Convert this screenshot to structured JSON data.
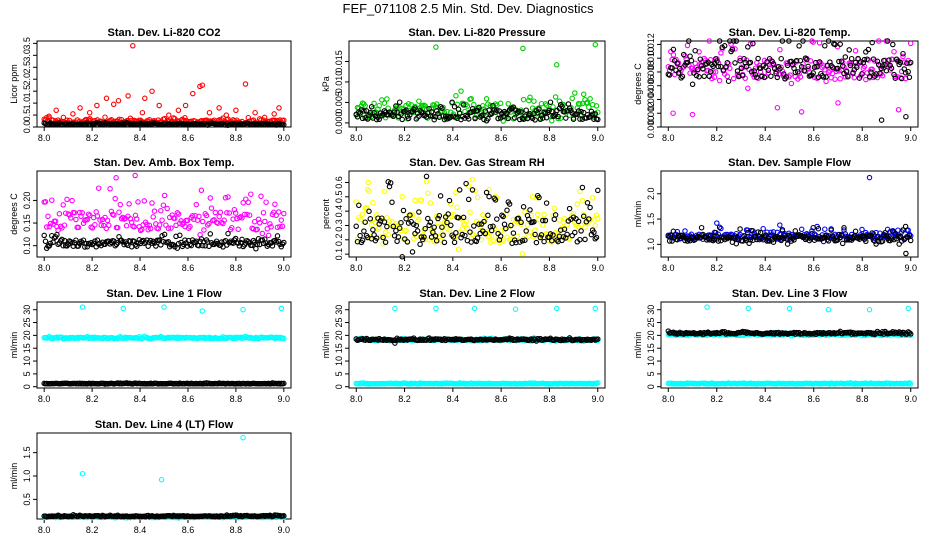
{
  "title": "FEF_071108  2.5 Min. Std. Dev. Diagnostics",
  "chart_data": [
    {
      "type": "scatter",
      "title": "Stan. Dev. Li-820 CO2",
      "ylabel": "Licor ppm",
      "xlim": [
        7.97,
        9.03
      ],
      "ylim": [
        0,
        3.6
      ],
      "xticks": [
        "8.0",
        "8.2",
        "8.4",
        "8.6",
        "8.8",
        "9.0"
      ],
      "yticks": [
        "0.0",
        "0.5",
        "1.0",
        "1.5",
        "2.0",
        "2.5",
        "3.0",
        "3.5"
      ],
      "series": [
        {
          "color": "#ff0000",
          "base": 0.22,
          "spread": 0.08,
          "bandwidth": 0.25,
          "outliers": [
            [
              8.02,
              0.45
            ],
            [
              8.05,
              0.7
            ],
            [
              8.08,
              0.4
            ],
            [
              8.12,
              0.55
            ],
            [
              8.15,
              0.8
            ],
            [
              8.19,
              0.6
            ],
            [
              8.22,
              0.9
            ],
            [
              8.26,
              1.2
            ],
            [
              8.29,
              0.95
            ],
            [
              8.31,
              1.1
            ],
            [
              8.35,
              1.3
            ],
            [
              8.37,
              3.4
            ],
            [
              8.41,
              0.6
            ],
            [
              8.42,
              1.2
            ],
            [
              8.45,
              1.5
            ],
            [
              8.48,
              0.9
            ],
            [
              8.52,
              0.5
            ],
            [
              8.56,
              0.7
            ],
            [
              8.59,
              0.9
            ],
            [
              8.62,
              1.4
            ],
            [
              8.65,
              1.7
            ],
            [
              8.66,
              1.75
            ],
            [
              8.69,
              0.6
            ],
            [
              8.73,
              0.8
            ],
            [
              8.76,
              0.5
            ],
            [
              8.8,
              0.7
            ],
            [
              8.84,
              1.8
            ],
            [
              8.88,
              0.6
            ],
            [
              8.92,
              0.4
            ],
            [
              8.96,
              0.55
            ],
            [
              8.98,
              0.8
            ]
          ]
        },
        {
          "color": "#000000",
          "base": 0.12,
          "spread": 0.03,
          "bandwidth": 0.06,
          "outliers": []
        }
      ]
    },
    {
      "type": "scatter",
      "title": "Stan. Dev. Li-820 Pressure",
      "ylabel": "kPa",
      "xlim": [
        7.97,
        9.03
      ],
      "ylim": [
        -0.001,
        0.02
      ],
      "xticks": [
        "8.0",
        "8.2",
        "8.4",
        "8.6",
        "8.8",
        "9.0"
      ],
      "yticks": [
        "0.000",
        "0.005",
        "0.010",
        "0.015"
      ],
      "series": [
        {
          "color": "#00cc00",
          "base": 0.003,
          "spread": 0.002,
          "bandwidth": 0.0045,
          "outliers": [
            [
              8.33,
              0.0185
            ],
            [
              8.69,
              0.0182
            ],
            [
              8.83,
              0.0142
            ],
            [
              8.99,
              0.0191
            ]
          ]
        },
        {
          "color": "#000000",
          "base": 0.002,
          "spread": 0.0012,
          "bandwidth": 0.003,
          "outliers": []
        }
      ]
    },
    {
      "type": "scatter",
      "title": "Stan. Dev. Li-820 Temp.",
      "ylabel": "degrees C",
      "xlim": [
        7.97,
        9.03
      ],
      "ylim": [
        0.0,
        0.0125
      ],
      "xticks": [
        "8.0",
        "8.2",
        "8.4",
        "8.6",
        "8.8",
        "9.0"
      ],
      "yticks": [
        "0.000",
        "0.002",
        "0.004",
        "0.006",
        "0.008",
        "0.010",
        "0.012"
      ],
      "series": [
        {
          "color": "#ff00ff",
          "base": 0.0085,
          "spread": 0.0015,
          "bandwidth": 0.0065,
          "outliers": [
            [
              8.02,
              0.002
            ],
            [
              8.1,
              0.0018
            ],
            [
              8.55,
              0.0022
            ],
            [
              8.7,
              0.0035
            ],
            [
              8.95,
              0.0025
            ],
            [
              8.45,
              0.0028
            ]
          ]
        },
        {
          "color": "#000000",
          "base": 0.0085,
          "spread": 0.0015,
          "bandwidth": 0.006,
          "outliers": [
            [
              8.88,
              0.001
            ],
            [
              8.98,
              0.0015
            ]
          ]
        }
      ]
    },
    {
      "type": "scatter",
      "title": "Stan. Dev. Amb. Box Temp.",
      "ylabel": "degrees C",
      "xlim": [
        7.97,
        9.03
      ],
      "ylim": [
        0.075,
        0.265
      ],
      "xticks": [
        "8.0",
        "8.2",
        "8.4",
        "8.6",
        "8.8",
        "9.0"
      ],
      "yticks": [
        "0.10",
        "0.15",
        "0.20"
      ],
      "series": [
        {
          "color": "#ff00ff",
          "base": 0.155,
          "spread": 0.02,
          "bandwidth": 0.09,
          "outliers": [
            [
              8.38,
              0.255
            ],
            [
              8.3,
              0.25
            ]
          ]
        },
        {
          "color": "#000000",
          "base": 0.105,
          "spread": 0.008,
          "bandwidth": 0.02,
          "outliers": []
        }
      ]
    },
    {
      "type": "scatter",
      "title": "Stan. Dev. Gas Stream RH",
      "ylabel": "percent",
      "xlim": [
        7.97,
        9.03
      ],
      "ylim": [
        0.08,
        0.68
      ],
      "xticks": [
        "8.0",
        "8.2",
        "8.4",
        "8.6",
        "8.8",
        "9.0"
      ],
      "yticks": [
        "0.1",
        "0.2",
        "0.3",
        "0.4",
        "0.5",
        "0.6"
      ],
      "series": [
        {
          "color": "#ffff00",
          "base": 0.28,
          "spread": 0.1,
          "bandwidth": 0.42,
          "outliers": [
            [
              8.05,
              0.6
            ],
            [
              8.48,
              0.62
            ],
            [
              8.55,
              0.55
            ]
          ]
        },
        {
          "color": "#000000",
          "base": 0.28,
          "spread": 0.1,
          "bandwidth": 0.4,
          "outliers": []
        }
      ]
    },
    {
      "type": "scatter",
      "title": "Stan. Dev. Sample Flow",
      "ylabel": "ml/min",
      "xlim": [
        7.97,
        9.03
      ],
      "ylim": [
        0.75,
        2.45
      ],
      "xticks": [
        "8.0",
        "8.2",
        "8.4",
        "8.6",
        "8.8",
        "9.0"
      ],
      "yticks": [
        "1.0",
        "1.5",
        "2.0"
      ],
      "series": [
        {
          "color": "#0000ff",
          "base": 1.15,
          "spread": 0.05,
          "bandwidth": 0.22,
          "outliers": [
            [
              8.83,
              2.32
            ],
            [
              8.2,
              1.42
            ],
            [
              8.46,
              1.38
            ]
          ]
        },
        {
          "color": "#000000",
          "base": 1.12,
          "spread": 0.06,
          "bandwidth": 0.25,
          "outliers": [
            [
              8.98,
              0.82
            ]
          ]
        }
      ]
    },
    {
      "type": "scatter",
      "title": "Stan. Dev. Line 1 Flow",
      "ylabel": "ml/min",
      "xlim": [
        7.97,
        9.03
      ],
      "ylim": [
        -0.5,
        33
      ],
      "xticks": [
        "8.0",
        "8.2",
        "8.4",
        "8.6",
        "8.8",
        "9.0"
      ],
      "yticks": [
        "0",
        "5",
        "10",
        "15",
        "20",
        "25",
        "30"
      ],
      "series": [
        {
          "color": "#00ffff",
          "base": 19,
          "spread": 0.25,
          "bandwidth": 0.6,
          "outliers": [
            [
              8.16,
              31
            ],
            [
              8.33,
              30.5
            ],
            [
              8.5,
              31
            ],
            [
              8.66,
              29.5
            ],
            [
              8.83,
              30
            ],
            [
              8.99,
              30.5
            ]
          ]
        },
        {
          "color": "#000000",
          "base": 1.2,
          "spread": 0.1,
          "bandwidth": 0.3,
          "outliers": []
        }
      ]
    },
    {
      "type": "scatter",
      "title": "Stan. Dev. Line 2 Flow",
      "ylabel": "ml/min",
      "xlim": [
        7.97,
        9.03
      ],
      "ylim": [
        -0.5,
        33
      ],
      "xticks": [
        "8.0",
        "8.2",
        "8.4",
        "8.6",
        "8.8",
        "9.0"
      ],
      "yticks": [
        "0",
        "5",
        "10",
        "15",
        "20",
        "25",
        "30"
      ],
      "series": [
        {
          "color": "#00ffff",
          "base": 1.2,
          "spread": 0.1,
          "bandwidth": 0.3,
          "outliers": [
            [
              8.16,
              30.5
            ],
            [
              8.33,
              30.5
            ],
            [
              8.49,
              30.5
            ],
            [
              8.66,
              30.2
            ],
            [
              8.83,
              30.5
            ],
            [
              8.99,
              30.5
            ]
          ]
        },
        {
          "color": "#00ffff",
          "base": 18.2,
          "spread": 0.3,
          "bandwidth": 0.8,
          "outliers": []
        },
        {
          "color": "#000000",
          "base": 18.3,
          "spread": 0.3,
          "bandwidth": 0.8,
          "outliers": [
            [
              8.16,
              17
            ]
          ]
        }
      ]
    },
    {
      "type": "scatter",
      "title": "Stan. Dev. Line 3 Flow",
      "ylabel": "ml/min",
      "xlim": [
        7.97,
        9.03
      ],
      "ylim": [
        -0.5,
        33
      ],
      "xticks": [
        "8.0",
        "8.2",
        "8.4",
        "8.6",
        "8.8",
        "9.0"
      ],
      "yticks": [
        "0",
        "5",
        "10",
        "15",
        "20",
        "25",
        "30"
      ],
      "series": [
        {
          "color": "#00ffff",
          "base": 1.2,
          "spread": 0.1,
          "bandwidth": 0.3,
          "outliers": [
            [
              8.16,
              31
            ],
            [
              8.33,
              30.5
            ],
            [
              8.5,
              30.5
            ],
            [
              8.66,
              30
            ],
            [
              8.83,
              30
            ],
            [
              8.99,
              30.5
            ]
          ]
        },
        {
          "color": "#00ffff",
          "base": 20.3,
          "spread": 0.3,
          "bandwidth": 0.8,
          "outliers": []
        },
        {
          "color": "#000000",
          "base": 20.8,
          "spread": 0.3,
          "bandwidth": 0.8,
          "outliers": []
        }
      ]
    },
    {
      "type": "scatter",
      "title": "Stan. Dev. Line 4 (LT) Flow",
      "ylabel": "ml/min",
      "xlim": [
        7.97,
        9.03
      ],
      "ylim": [
        0.08,
        1.92
      ],
      "xticks": [
        "8.0",
        "8.2",
        "8.4",
        "8.6",
        "8.8",
        "9.0"
      ],
      "yticks": [
        "0.5",
        "1.0",
        "1.5"
      ],
      "series": [
        {
          "color": "#00ffff",
          "base": 0.12,
          "spread": 0.01,
          "bandwidth": 0.03,
          "outliers": [
            [
              8.16,
              1.05
            ],
            [
              8.49,
              0.92
            ],
            [
              8.83,
              1.82
            ]
          ]
        },
        {
          "color": "#000000",
          "base": 0.14,
          "spread": 0.01,
          "bandwidth": 0.03,
          "outliers": []
        }
      ]
    }
  ]
}
